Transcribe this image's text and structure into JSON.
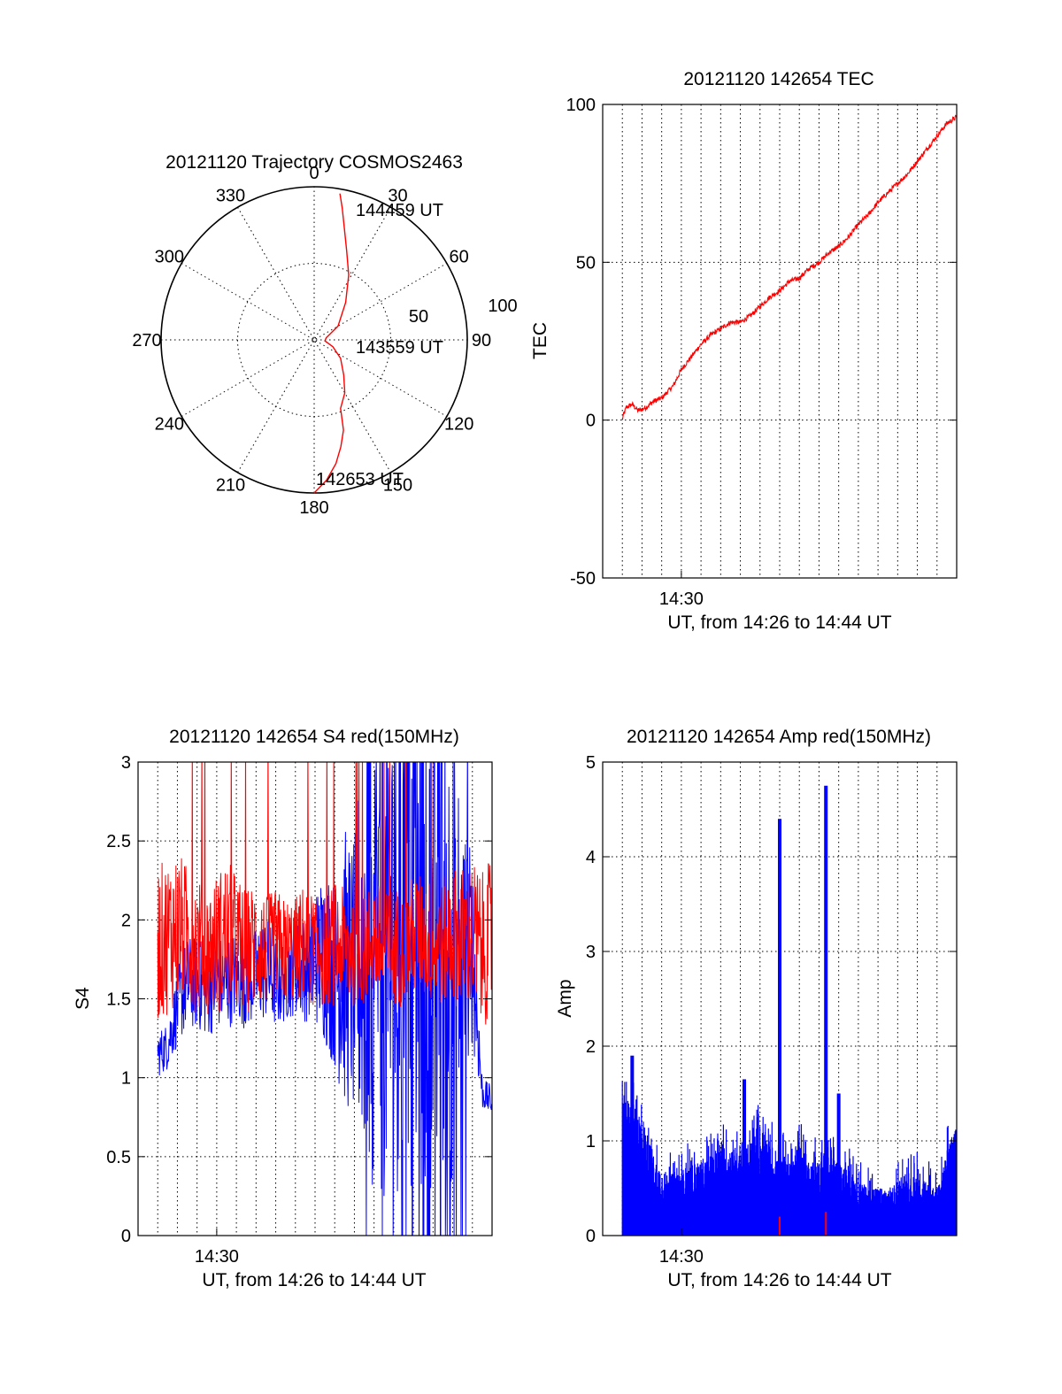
{
  "colors": {
    "primary": "#ff0000",
    "secondary": "#0000ff",
    "axes": "#000000"
  },
  "chart_data": [
    {
      "id": "trajectory",
      "type": "polar",
      "title": "20121120 Trajectory COSMOS2463",
      "angle_labels": [
        "0",
        "30",
        "60",
        "90",
        "120",
        "150",
        "180",
        "210",
        "240",
        "270",
        "300",
        "330"
      ],
      "radial_tick_labels": [
        "50",
        "100"
      ],
      "radial_range": [
        0,
        100
      ],
      "grid": true,
      "track": {
        "azimuth_deg": [
          180,
          175,
          170,
          166,
          162,
          160,
          159,
          150,
          140,
          125,
          110,
          95,
          80,
          60,
          40,
          28,
          20,
          15,
          12,
          10
        ],
        "zenith_distance": [
          100,
          92,
          82,
          72,
          62,
          52,
          48,
          40,
          30,
          21,
          13,
          7,
          8,
          18,
          32,
          48,
          62,
          76,
          88,
          97
        ]
      },
      "time_annotations": [
        {
          "text": "142653 UT",
          "azimuth_deg": 181,
          "zenith_distance": 102
        },
        {
          "text": "143559 UT",
          "azimuth_deg": 98,
          "zenith_distance": 30
        },
        {
          "text": "144459 UT",
          "azimuth_deg": 16,
          "zenith_distance": 92
        }
      ]
    },
    {
      "id": "tec",
      "type": "line",
      "title": "20121120 142654 TEC",
      "ylabel": "TEC",
      "xlabel": "UT, from 14:26 to 14:44 UT",
      "xlim": [
        0,
        18
      ],
      "x_unit": "minutes after 14:26 UT",
      "x_tick_labels": [
        {
          "x": 4,
          "label": "14:30"
        }
      ],
      "ylim": [
        -50,
        100
      ],
      "y_tick_labels": [
        "-50",
        "0",
        "50",
        "100"
      ],
      "y_ticks": [
        -50,
        0,
        50,
        100
      ],
      "x_grid": [
        1,
        2,
        3,
        4,
        5,
        6,
        7,
        8,
        9,
        10,
        11,
        12,
        13,
        14,
        15,
        16,
        17
      ],
      "y_grid": [
        0,
        50
      ],
      "x_data_range": [
        1,
        18
      ],
      "series": [
        {
          "color": "#ff0000",
          "x": [
            1.0,
            1.2,
            1.5,
            1.8,
            2.2,
            2.6,
            3.0,
            3.6,
            4.0,
            4.5,
            5.0,
            5.5,
            6.0,
            6.5,
            7.0,
            7.5,
            8.0,
            8.5,
            9.0,
            9.5,
            10.0,
            10.5,
            11.0,
            11.5,
            12.0,
            12.5,
            13.0,
            13.5,
            14.0,
            14.5,
            15.0,
            15.5,
            16.0,
            16.5,
            17.0,
            17.5,
            18.0
          ],
          "values": [
            0.5,
            4,
            5,
            3,
            4,
            6,
            7,
            11,
            16,
            20,
            24,
            27,
            29,
            31,
            31,
            33,
            36,
            39,
            41,
            44,
            45,
            48,
            50,
            53,
            55,
            58,
            62,
            65,
            69,
            72,
            75,
            78,
            82,
            86,
            90,
            94,
            96
          ]
        }
      ]
    },
    {
      "id": "s4",
      "type": "line",
      "title": "20121120 142654 S4 red(150MHz)",
      "ylabel": "S4",
      "xlabel": "UT, from 14:26 to 14:44 UT",
      "xlim": [
        0,
        18
      ],
      "x_unit": "minutes after 14:26 UT",
      "x_tick_labels": [
        {
          "x": 4,
          "label": "14:30"
        }
      ],
      "ylim": [
        0,
        3
      ],
      "y_tick_labels": [
        "0",
        "0.5",
        "1",
        "1.5",
        "2",
        "2.5",
        "3"
      ],
      "y_ticks": [
        0,
        0.5,
        1,
        1.5,
        2,
        2.5,
        3
      ],
      "x_grid": [
        1,
        2,
        3,
        4,
        5,
        6,
        7,
        8,
        9,
        10,
        11,
        12,
        13,
        14,
        15,
        16,
        17
      ],
      "y_grid": [
        0.5,
        1,
        1.5,
        2,
        2.5
      ],
      "x_data_range": [
        1,
        18
      ],
      "series": [
        {
          "color": "#0000ff",
          "x": [
            1.0,
            1.5,
            2.0,
            2.5,
            3.0,
            3.5,
            4.0,
            4.5,
            5.0,
            5.5,
            6.0,
            6.5,
            7.0,
            7.5,
            8.0,
            8.5,
            9.0,
            9.5,
            10.0,
            10.5,
            11.0,
            11.5,
            12.0,
            12.5,
            13.0,
            13.5,
            14.0,
            14.5,
            15.0,
            15.5,
            16.0,
            16.5,
            17.0,
            17.5,
            18.0
          ],
          "mean": [
            1.15,
            1.2,
            1.45,
            1.6,
            1.6,
            1.55,
            1.6,
            1.6,
            1.65,
            1.6,
            1.65,
            1.7,
            1.6,
            1.65,
            1.7,
            1.7,
            1.75,
            1.8,
            1.65,
            1.7,
            1.6,
            1.9,
            1.8,
            1.7,
            1.8,
            1.7,
            1.8,
            1.75,
            1.7,
            1.85,
            1.8,
            1.75,
            1.8,
            0.9,
            0.85
          ],
          "spread": [
            0.15,
            0.15,
            0.25,
            0.3,
            0.3,
            0.3,
            0.3,
            0.3,
            0.3,
            0.3,
            0.3,
            0.35,
            0.3,
            0.3,
            0.3,
            0.35,
            0.4,
            0.6,
            0.6,
            0.9,
            0.9,
            1.5,
            1.5,
            1.5,
            1.5,
            1.5,
            1.5,
            1.5,
            1.5,
            1.5,
            1.5,
            1.0,
            0.6,
            0.1,
            0.1
          ]
        },
        {
          "color": "#ff0000",
          "x": [
            1.0,
            1.5,
            2.0,
            2.5,
            3.0,
            3.5,
            4.0,
            4.5,
            5.0,
            5.5,
            6.0,
            6.5,
            7.0,
            7.5,
            8.0,
            8.5,
            9.0,
            9.5,
            10.0,
            10.5,
            11.0,
            11.5,
            12.0,
            12.5,
            13.0,
            13.5,
            14.0,
            14.5,
            15.0,
            15.5,
            16.0,
            16.5,
            17.0,
            17.5,
            18.0
          ],
          "mean": [
            1.85,
            1.9,
            1.95,
            1.9,
            1.85,
            1.8,
            1.85,
            1.9,
            1.85,
            1.8,
            1.85,
            1.8,
            1.85,
            1.8,
            1.8,
            1.85,
            1.8,
            1.8,
            1.85,
            1.8,
            1.85,
            1.8,
            1.9,
            1.8,
            1.85,
            1.8,
            1.9,
            1.9,
            1.85,
            1.85,
            1.9,
            1.9,
            1.9,
            1.8,
            1.9
          ],
          "spread": [
            0.5,
            0.5,
            0.5,
            0.45,
            0.45,
            0.4,
            0.45,
            0.5,
            0.45,
            0.4,
            0.4,
            0.35,
            0.35,
            0.35,
            0.35,
            0.4,
            0.35,
            0.35,
            0.4,
            0.4,
            0.4,
            0.35,
            0.4,
            0.35,
            0.4,
            0.35,
            0.4,
            0.4,
            0.4,
            0.4,
            0.45,
            0.45,
            0.5,
            0.5,
            0.5
          ]
        }
      ]
    },
    {
      "id": "amp",
      "type": "area",
      "title": "20121120 142654 Amp red(150MHz)",
      "ylabel": "Amp",
      "xlabel": "UT, from 14:26 to 14:44 UT",
      "xlim": [
        0,
        18
      ],
      "x_unit": "minutes after 14:26 UT",
      "x_tick_labels": [
        {
          "x": 4,
          "label": "14:30"
        }
      ],
      "ylim": [
        0,
        5
      ],
      "y_tick_labels": [
        "0",
        "1",
        "2",
        "3",
        "4",
        "5"
      ],
      "y_ticks": [
        0,
        1,
        2,
        3,
        4,
        5
      ],
      "x_grid": [
        1,
        2,
        3,
        4,
        5,
        6,
        7,
        8,
        9,
        10,
        11,
        12,
        13,
        14,
        15,
        16,
        17
      ],
      "y_grid": [
        1,
        2,
        3,
        4
      ],
      "x_data_range": [
        1,
        18
      ],
      "series": [
        {
          "color": "#0000ff",
          "x": [
            1.0,
            1.5,
            2.0,
            2.5,
            3.0,
            3.5,
            4.0,
            4.5,
            5.0,
            5.5,
            6.0,
            6.5,
            7.0,
            7.5,
            8.0,
            8.5,
            9.0,
            9.5,
            10.0,
            10.5,
            11.0,
            11.5,
            12.0,
            12.5,
            13.0,
            13.5,
            14.0,
            14.5,
            15.0,
            15.5,
            16.0,
            16.5,
            17.0,
            17.5,
            18.0
          ],
          "envelope": [
            1.5,
            1.4,
            1.3,
            0.9,
            0.7,
            0.65,
            0.7,
            0.75,
            0.8,
            0.85,
            1.0,
            0.95,
            0.85,
            1.0,
            1.2,
            1.0,
            0.8,
            0.9,
            1.0,
            0.8,
            0.8,
            1.0,
            0.75,
            0.7,
            0.6,
            0.5,
            0.5,
            0.5,
            0.55,
            0.6,
            0.65,
            0.55,
            0.5,
            0.9,
            1.2
          ],
          "floor": [
            0.9,
            0.9,
            0.7,
            0.4,
            0.35,
            0.35,
            0.35,
            0.35,
            0.4,
            0.4,
            0.45,
            0.45,
            0.45,
            0.5,
            0.5,
            0.45,
            0.4,
            0.4,
            0.45,
            0.4,
            0.35,
            0.4,
            0.35,
            0.3,
            0.3,
            0.3,
            0.3,
            0.25,
            0.25,
            0.3,
            0.3,
            0.3,
            0.3,
            0.6,
            0.8
          ],
          "spikes": [
            {
              "x": 9.0,
              "value": 4.4
            },
            {
              "x": 11.35,
              "value": 4.75
            },
            {
              "x": 1.5,
              "value": 1.9
            },
            {
              "x": 7.2,
              "value": 1.65
            },
            {
              "x": 12.0,
              "value": 1.5
            }
          ]
        },
        {
          "color": "#ff0000",
          "x": [
            9.0,
            11.35
          ],
          "values": [
            0.2,
            0.25
          ]
        }
      ]
    }
  ]
}
